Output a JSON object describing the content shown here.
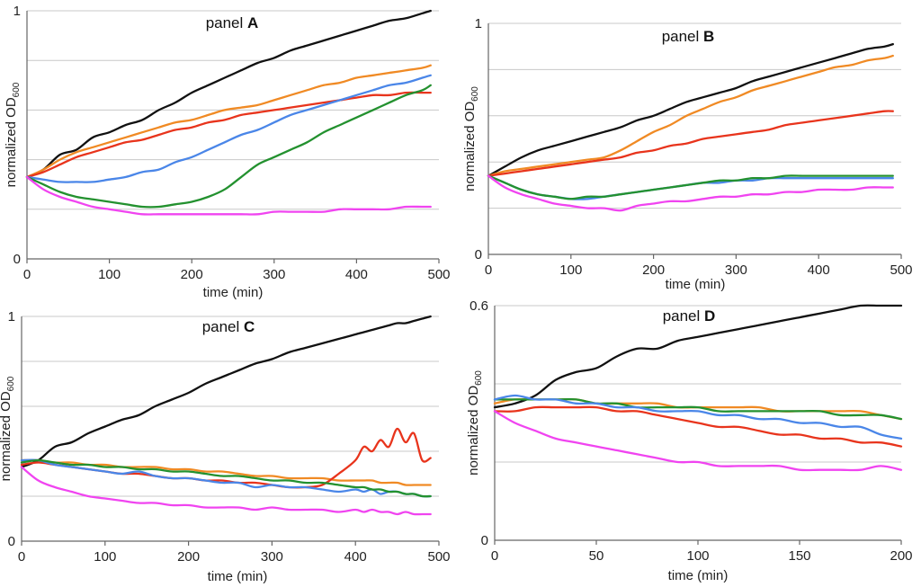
{
  "chart_data": [
    {
      "type": "line",
      "panel_label": "panel ",
      "panel_letter": "A",
      "xlabel": "time (min)",
      "ylabel": "normalized OD",
      "ylabel_sub": "600",
      "xlim": [
        0,
        500
      ],
      "ylim": [
        0,
        1
      ],
      "xticks": [
        "0",
        "100",
        "200",
        "300",
        "400",
        "500"
      ],
      "yticks": [
        {
          "v": 0,
          "label": "0"
        },
        {
          "v": 0.2,
          "label": ""
        },
        {
          "v": 0.4,
          "label": ""
        },
        {
          "v": 0.6,
          "label": ""
        },
        {
          "v": 0.8,
          "label": ""
        },
        {
          "v": 1,
          "label": "1"
        }
      ],
      "x": [
        0,
        20,
        40,
        60,
        80,
        100,
        120,
        140,
        160,
        180,
        200,
        220,
        240,
        260,
        280,
        300,
        320,
        340,
        360,
        380,
        400,
        420,
        440,
        460,
        480,
        490
      ],
      "series": [
        {
          "name": "black",
          "color": "#111111",
          "values": [
            0.33,
            0.36,
            0.42,
            0.44,
            0.49,
            0.51,
            0.54,
            0.56,
            0.6,
            0.63,
            0.67,
            0.7,
            0.73,
            0.76,
            0.79,
            0.81,
            0.84,
            0.86,
            0.88,
            0.9,
            0.92,
            0.94,
            0.96,
            0.97,
            0.99,
            1.0
          ]
        },
        {
          "name": "orange",
          "color": "#f08a24",
          "values": [
            0.33,
            0.36,
            0.4,
            0.43,
            0.45,
            0.47,
            0.49,
            0.51,
            0.53,
            0.55,
            0.56,
            0.58,
            0.6,
            0.61,
            0.62,
            0.64,
            0.66,
            0.68,
            0.7,
            0.71,
            0.73,
            0.74,
            0.75,
            0.76,
            0.77,
            0.78
          ]
        },
        {
          "name": "red",
          "color": "#e8341c",
          "values": [
            0.33,
            0.35,
            0.38,
            0.41,
            0.43,
            0.45,
            0.47,
            0.48,
            0.5,
            0.52,
            0.53,
            0.55,
            0.56,
            0.58,
            0.59,
            0.6,
            0.61,
            0.62,
            0.63,
            0.64,
            0.65,
            0.66,
            0.66,
            0.67,
            0.67,
            0.67
          ]
        },
        {
          "name": "blue",
          "color": "#4a86e8",
          "values": [
            0.33,
            0.32,
            0.31,
            0.31,
            0.31,
            0.32,
            0.33,
            0.35,
            0.36,
            0.39,
            0.41,
            0.44,
            0.47,
            0.5,
            0.52,
            0.55,
            0.58,
            0.6,
            0.62,
            0.64,
            0.66,
            0.68,
            0.7,
            0.71,
            0.73,
            0.74
          ]
        },
        {
          "name": "green",
          "color": "#23912f",
          "values": [
            0.33,
            0.3,
            0.27,
            0.25,
            0.24,
            0.23,
            0.22,
            0.21,
            0.21,
            0.22,
            0.23,
            0.25,
            0.28,
            0.33,
            0.38,
            0.41,
            0.44,
            0.47,
            0.51,
            0.54,
            0.57,
            0.6,
            0.63,
            0.66,
            0.68,
            0.7
          ]
        },
        {
          "name": "magenta",
          "color": "#f044f0",
          "values": [
            0.33,
            0.28,
            0.25,
            0.23,
            0.21,
            0.2,
            0.19,
            0.18,
            0.18,
            0.18,
            0.18,
            0.18,
            0.18,
            0.18,
            0.18,
            0.19,
            0.19,
            0.19,
            0.19,
            0.2,
            0.2,
            0.2,
            0.2,
            0.21,
            0.21,
            0.21
          ]
        }
      ]
    },
    {
      "type": "line",
      "panel_label": "panel ",
      "panel_letter": "B",
      "xlabel": "time (min)",
      "ylabel": "normalized OD",
      "ylabel_sub": "600",
      "xlim": [
        0,
        500
      ],
      "ylim": [
        0,
        1
      ],
      "xticks": [
        "0",
        "100",
        "200",
        "300",
        "400",
        "500"
      ],
      "yticks": [
        {
          "v": 0,
          "label": "0"
        },
        {
          "v": 0.2,
          "label": ""
        },
        {
          "v": 0.4,
          "label": ""
        },
        {
          "v": 0.6,
          "label": ""
        },
        {
          "v": 0.8,
          "label": ""
        },
        {
          "v": 1,
          "label": "1"
        }
      ],
      "x": [
        0,
        20,
        40,
        60,
        80,
        100,
        120,
        140,
        160,
        180,
        200,
        220,
        240,
        260,
        280,
        300,
        320,
        340,
        360,
        380,
        400,
        420,
        440,
        460,
        480,
        490
      ],
      "series": [
        {
          "name": "black",
          "color": "#111111",
          "values": [
            0.34,
            0.38,
            0.42,
            0.45,
            0.47,
            0.49,
            0.51,
            0.53,
            0.55,
            0.58,
            0.6,
            0.63,
            0.66,
            0.68,
            0.7,
            0.72,
            0.75,
            0.77,
            0.79,
            0.81,
            0.83,
            0.85,
            0.87,
            0.89,
            0.9,
            0.91
          ]
        },
        {
          "name": "orange",
          "color": "#f08a24",
          "values": [
            0.34,
            0.36,
            0.37,
            0.38,
            0.39,
            0.4,
            0.41,
            0.42,
            0.45,
            0.49,
            0.53,
            0.56,
            0.6,
            0.63,
            0.66,
            0.68,
            0.71,
            0.73,
            0.75,
            0.77,
            0.79,
            0.81,
            0.82,
            0.84,
            0.85,
            0.86
          ]
        },
        {
          "name": "red",
          "color": "#e8341c",
          "values": [
            0.34,
            0.35,
            0.36,
            0.37,
            0.38,
            0.39,
            0.4,
            0.41,
            0.42,
            0.44,
            0.45,
            0.47,
            0.48,
            0.5,
            0.51,
            0.52,
            0.53,
            0.54,
            0.56,
            0.57,
            0.58,
            0.59,
            0.6,
            0.61,
            0.62,
            0.62
          ]
        },
        {
          "name": "blue",
          "color": "#4a86e8",
          "values": [
            0.34,
            0.31,
            0.28,
            0.26,
            0.25,
            0.24,
            0.24,
            0.25,
            0.26,
            0.27,
            0.28,
            0.29,
            0.3,
            0.31,
            0.31,
            0.32,
            0.32,
            0.33,
            0.33,
            0.33,
            0.33,
            0.33,
            0.33,
            0.33,
            0.33,
            0.33
          ]
        },
        {
          "name": "green",
          "color": "#23912f",
          "values": [
            0.34,
            0.31,
            0.28,
            0.26,
            0.25,
            0.24,
            0.25,
            0.25,
            0.26,
            0.27,
            0.28,
            0.29,
            0.3,
            0.31,
            0.32,
            0.32,
            0.33,
            0.33,
            0.34,
            0.34,
            0.34,
            0.34,
            0.34,
            0.34,
            0.34,
            0.34
          ]
        },
        {
          "name": "magenta",
          "color": "#f044f0",
          "values": [
            0.34,
            0.29,
            0.26,
            0.24,
            0.22,
            0.21,
            0.2,
            0.2,
            0.19,
            0.21,
            0.22,
            0.23,
            0.23,
            0.24,
            0.25,
            0.25,
            0.26,
            0.26,
            0.27,
            0.27,
            0.28,
            0.28,
            0.28,
            0.29,
            0.29,
            0.29
          ]
        }
      ]
    },
    {
      "type": "line",
      "panel_label": "panel ",
      "panel_letter": "C",
      "xlabel": "time (min)",
      "ylabel": "normalized OD",
      "ylabel_sub": "600",
      "xlim": [
        0,
        500
      ],
      "ylim": [
        0,
        1
      ],
      "xticks": [
        "0",
        "100",
        "200",
        "300",
        "400",
        "500"
      ],
      "yticks": [
        {
          "v": 0,
          "label": "0"
        },
        {
          "v": 0.2,
          "label": ""
        },
        {
          "v": 0.4,
          "label": ""
        },
        {
          "v": 0.6,
          "label": ""
        },
        {
          "v": 0.8,
          "label": ""
        },
        {
          "v": 1,
          "label": "1"
        }
      ],
      "x": [
        0,
        20,
        40,
        60,
        80,
        100,
        120,
        140,
        160,
        180,
        200,
        220,
        240,
        260,
        280,
        300,
        320,
        340,
        360,
        380,
        400,
        410,
        420,
        430,
        440,
        450,
        460,
        470,
        480,
        490
      ],
      "series": [
        {
          "name": "black",
          "color": "#111111",
          "values": [
            0.33,
            0.36,
            0.42,
            0.44,
            0.48,
            0.51,
            0.54,
            0.56,
            0.6,
            0.63,
            0.66,
            0.7,
            0.73,
            0.76,
            0.79,
            0.81,
            0.84,
            0.86,
            0.88,
            0.9,
            0.92,
            0.93,
            0.94,
            0.95,
            0.96,
            0.97,
            0.97,
            0.98,
            0.99,
            1.0
          ]
        },
        {
          "name": "orange",
          "color": "#f08a24",
          "values": [
            0.36,
            0.36,
            0.35,
            0.35,
            0.34,
            0.34,
            0.33,
            0.33,
            0.33,
            0.32,
            0.32,
            0.31,
            0.31,
            0.3,
            0.29,
            0.29,
            0.28,
            0.28,
            0.28,
            0.27,
            0.27,
            0.27,
            0.27,
            0.26,
            0.26,
            0.26,
            0.25,
            0.25,
            0.25,
            0.25
          ]
        },
        {
          "name": "red",
          "color": "#e8341c",
          "values": [
            0.34,
            0.35,
            0.34,
            0.33,
            0.32,
            0.31,
            0.3,
            0.3,
            0.29,
            0.28,
            0.28,
            0.27,
            0.27,
            0.26,
            0.26,
            0.25,
            0.24,
            0.24,
            0.25,
            0.3,
            0.36,
            0.42,
            0.4,
            0.45,
            0.42,
            0.5,
            0.44,
            0.48,
            0.36,
            0.37
          ]
        },
        {
          "name": "blue",
          "color": "#4a86e8",
          "values": [
            0.36,
            0.36,
            0.34,
            0.33,
            0.32,
            0.31,
            0.3,
            0.31,
            0.29,
            0.28,
            0.28,
            0.27,
            0.26,
            0.26,
            0.24,
            0.25,
            0.24,
            0.24,
            0.23,
            0.22,
            0.23,
            0.22,
            0.23,
            0.21,
            0.22,
            0.22,
            0.21,
            0.21,
            0.2,
            0.2
          ]
        },
        {
          "name": "green",
          "color": "#23912f",
          "values": [
            0.35,
            0.36,
            0.35,
            0.34,
            0.34,
            0.33,
            0.33,
            0.32,
            0.32,
            0.31,
            0.31,
            0.3,
            0.29,
            0.29,
            0.28,
            0.27,
            0.27,
            0.26,
            0.26,
            0.25,
            0.24,
            0.24,
            0.23,
            0.23,
            0.22,
            0.22,
            0.21,
            0.21,
            0.2,
            0.2
          ]
        },
        {
          "name": "magenta",
          "color": "#f044f0",
          "values": [
            0.33,
            0.27,
            0.24,
            0.22,
            0.2,
            0.19,
            0.18,
            0.17,
            0.17,
            0.16,
            0.16,
            0.15,
            0.15,
            0.15,
            0.14,
            0.15,
            0.14,
            0.14,
            0.14,
            0.13,
            0.14,
            0.13,
            0.14,
            0.13,
            0.13,
            0.12,
            0.13,
            0.12,
            0.12,
            0.12
          ]
        }
      ]
    },
    {
      "type": "line",
      "panel_label": "panel ",
      "panel_letter": "D",
      "xlabel": "time (min)",
      "ylabel": "normalized OD",
      "ylabel_sub": "600",
      "xlim": [
        0,
        200
      ],
      "ylim": [
        0,
        0.6
      ],
      "xticks": [
        "0",
        "50",
        "100",
        "150",
        "200"
      ],
      "yticks": [
        {
          "v": 0,
          "label": "0"
        },
        {
          "v": 0.2,
          "label": ""
        },
        {
          "v": 0.4,
          "label": ""
        },
        {
          "v": 0.6,
          "label": "0.6"
        }
      ],
      "x": [
        0,
        10,
        20,
        30,
        40,
        50,
        60,
        70,
        80,
        90,
        100,
        110,
        120,
        130,
        140,
        150,
        160,
        170,
        180,
        190,
        200
      ],
      "series": [
        {
          "name": "black",
          "color": "#111111",
          "values": [
            0.34,
            0.35,
            0.37,
            0.41,
            0.43,
            0.44,
            0.47,
            0.49,
            0.49,
            0.51,
            0.52,
            0.53,
            0.54,
            0.55,
            0.56,
            0.57,
            0.58,
            0.59,
            0.6,
            0.6,
            0.6
          ]
        },
        {
          "name": "orange",
          "color": "#f08a24",
          "values": [
            0.35,
            0.36,
            0.36,
            0.36,
            0.36,
            0.35,
            0.35,
            0.35,
            0.35,
            0.34,
            0.34,
            0.34,
            0.34,
            0.34,
            0.33,
            0.33,
            0.33,
            0.33,
            0.33,
            0.32,
            0.31
          ]
        },
        {
          "name": "green",
          "color": "#23912f",
          "values": [
            0.36,
            0.36,
            0.36,
            0.36,
            0.36,
            0.35,
            0.35,
            0.34,
            0.34,
            0.34,
            0.34,
            0.33,
            0.33,
            0.33,
            0.33,
            0.33,
            0.33,
            0.32,
            0.32,
            0.32,
            0.31
          ]
        },
        {
          "name": "blue",
          "color": "#4a86e8",
          "values": [
            0.36,
            0.37,
            0.36,
            0.36,
            0.35,
            0.35,
            0.34,
            0.34,
            0.33,
            0.33,
            0.33,
            0.32,
            0.32,
            0.31,
            0.31,
            0.3,
            0.3,
            0.29,
            0.29,
            0.27,
            0.26
          ]
        },
        {
          "name": "red",
          "color": "#e8341c",
          "values": [
            0.33,
            0.33,
            0.34,
            0.34,
            0.34,
            0.34,
            0.33,
            0.33,
            0.32,
            0.31,
            0.3,
            0.29,
            0.29,
            0.28,
            0.27,
            0.27,
            0.26,
            0.26,
            0.25,
            0.25,
            0.24
          ]
        },
        {
          "name": "magenta",
          "color": "#f044f0",
          "values": [
            0.33,
            0.3,
            0.28,
            0.26,
            0.25,
            0.24,
            0.23,
            0.22,
            0.21,
            0.2,
            0.2,
            0.19,
            0.19,
            0.19,
            0.19,
            0.18,
            0.18,
            0.18,
            0.18,
            0.19,
            0.18
          ]
        }
      ]
    }
  ]
}
